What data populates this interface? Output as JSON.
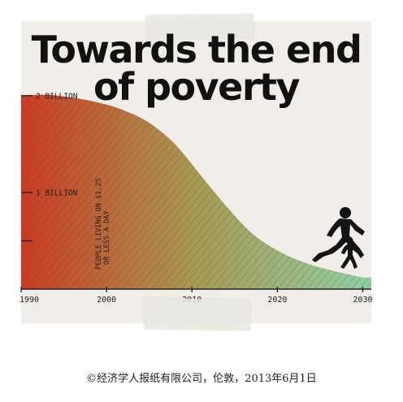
{
  "title_lines": [
    "Towards the end",
    "of poverty"
  ],
  "caption": "©经济学人报纸有限公司，伦敦，2013年6月1日",
  "chart_data": {
    "type": "area",
    "x": [
      1990,
      1993,
      1996,
      1999,
      2002,
      2005,
      2008,
      2011,
      2014,
      2017,
      2020,
      2023,
      2026,
      2029,
      2030
    ],
    "values": [
      2.0,
      2.01,
      1.98,
      1.93,
      1.85,
      1.72,
      1.5,
      1.18,
      0.86,
      0.58,
      0.4,
      0.28,
      0.2,
      0.14,
      0.12
    ],
    "xlim": [
      1990,
      2031
    ],
    "ylim": [
      0,
      2.15
    ],
    "x_ticks": [
      {
        "value": 1990,
        "label": "1990"
      },
      {
        "value": 2000,
        "label": "2000"
      },
      {
        "value": 2010,
        "label": "2010"
      },
      {
        "value": 2020,
        "label": "2020"
      },
      {
        "value": 2030,
        "label": "2030"
      }
    ],
    "y_ticks": [
      {
        "value": 2.0,
        "label": "2 BILLION"
      },
      {
        "value": 1.0,
        "label": "1 BILLION"
      },
      {
        "value": 0.5,
        "label": ""
      }
    ],
    "series_label_lines": [
      "PEOPLE LIVING ON $1.25",
      "OR LESS A DAY"
    ],
    "colors": {
      "start": "#cc3a24",
      "middle": "#a89a52",
      "end": "#8fcfa6",
      "hatch": "#5a4632",
      "axis": "#222222"
    },
    "grid": false,
    "legend": "none"
  },
  "illustration": "adult-and-child-running-icon"
}
